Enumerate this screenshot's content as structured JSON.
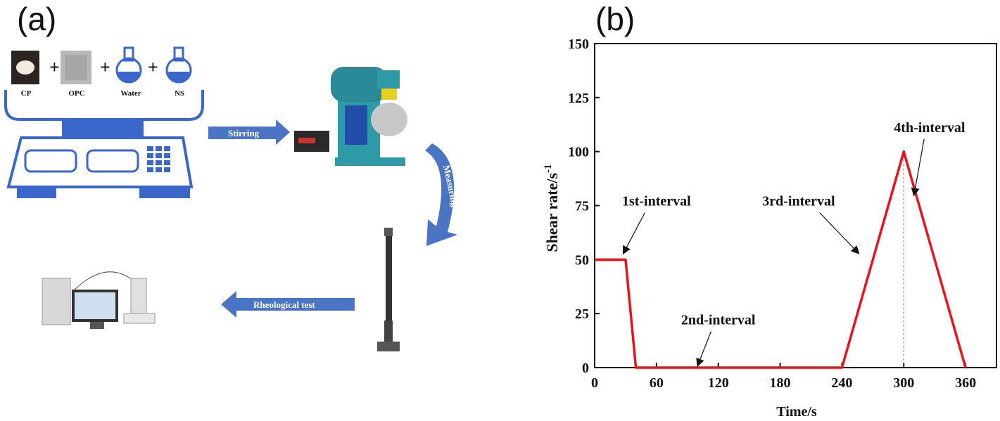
{
  "panel_a": {
    "label": "(a)",
    "ingredients": [
      "CP",
      "OPC",
      "Water",
      "NS"
    ],
    "plus": "+",
    "steps": {
      "stirring": "Stirring",
      "measuring": "Measuring drill",
      "rheological": "Rheological test"
    }
  },
  "panel_b": {
    "label": "(b)"
  },
  "chart_data": {
    "type": "line",
    "xlabel": "Time/s",
    "ylabel": "Shear rate/s",
    "ylabel_exp": "-1",
    "xlim": [
      0,
      390
    ],
    "ylim": [
      0,
      150
    ],
    "xticks": [
      0,
      60,
      120,
      180,
      240,
      300,
      360
    ],
    "yticks": [
      0,
      25,
      50,
      75,
      100,
      125,
      150
    ],
    "series": [
      {
        "color": "#e8141c",
        "x": [
          0,
          30,
          40,
          240,
          300,
          360
        ],
        "y": [
          50,
          50,
          0,
          0,
          100,
          0
        ]
      }
    ],
    "annotations": [
      {
        "text": "1st-interval",
        "x": 60,
        "y": 75,
        "arrow_to": [
          28,
          53
        ]
      },
      {
        "text": "2nd-interval",
        "x": 120,
        "y": 20,
        "arrow_to": [
          100,
          1
        ]
      },
      {
        "text": "3rd-interval",
        "x": 198,
        "y": 75,
        "arrow_to": [
          256,
          53
        ]
      },
      {
        "text": "4th-interval",
        "x": 325,
        "y": 109,
        "arrow_to": [
          310,
          80
        ]
      }
    ],
    "colors": {
      "line": "#e8141c",
      "arrow_blue": "#4a74c4",
      "scale_blue": "#3a67c9"
    }
  }
}
